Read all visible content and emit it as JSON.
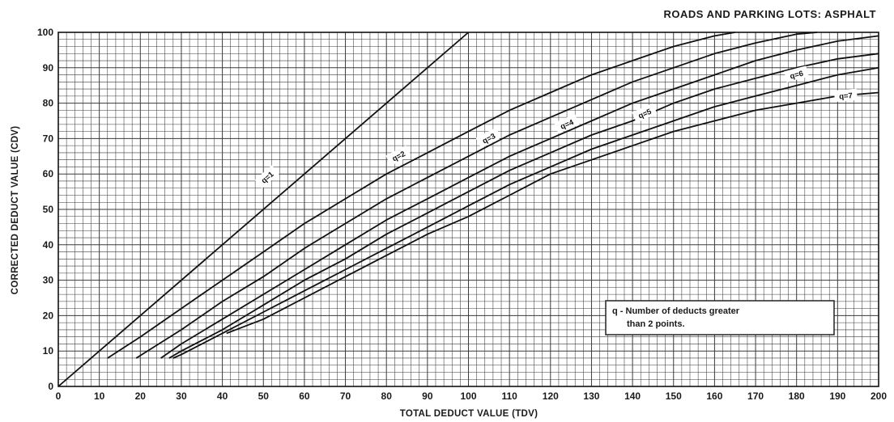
{
  "chart_data": {
    "type": "line",
    "title": "ROADS AND PARKING LOTS:  ASPHALT",
    "xlabel": "TOTAL DEDUCT VALUE (TDV)",
    "ylabel": "CORRECTED DEDUCT VALUE (CDV)",
    "xlim": [
      0,
      200
    ],
    "ylim": [
      0,
      100
    ],
    "xticks": [
      "0",
      "10",
      "20",
      "30",
      "40",
      "50",
      "60",
      "70",
      "80",
      "90",
      "100",
      "110",
      "120",
      "130",
      "140",
      "150",
      "160",
      "170",
      "180",
      "190",
      "200"
    ],
    "yticks": [
      "0",
      "10",
      "20",
      "30",
      "40",
      "50",
      "60",
      "70",
      "80",
      "90",
      "100"
    ],
    "grid": true,
    "legend_note": [
      "q - Number of deducts greater",
      "than 2 points."
    ],
    "series": [
      {
        "name": "q=1",
        "x": [
          0,
          100
        ],
        "y": [
          0,
          100
        ]
      },
      {
        "name": "q=2",
        "x": [
          12,
          20,
          30,
          40,
          50,
          60,
          70,
          80,
          90,
          100,
          110,
          120,
          130,
          140,
          150,
          160,
          165
        ],
        "y": [
          8,
          14,
          22,
          30,
          38,
          46,
          53,
          60,
          66,
          72,
          78,
          83,
          88,
          92,
          96,
          99,
          100
        ]
      },
      {
        "name": "q=3",
        "x": [
          19,
          30,
          40,
          50,
          60,
          70,
          80,
          90,
          100,
          110,
          120,
          130,
          140,
          150,
          160,
          170,
          180,
          185
        ],
        "y": [
          8,
          16,
          24,
          31,
          39,
          46,
          53,
          59,
          65,
          71,
          76,
          81,
          86,
          90,
          94,
          97,
          99.5,
          100
        ]
      },
      {
        "name": "q=4",
        "x": [
          25,
          30,
          40,
          50,
          60,
          70,
          80,
          90,
          100,
          110,
          120,
          130,
          140,
          150,
          160,
          170,
          180,
          190,
          200
        ],
        "y": [
          8,
          12,
          19,
          26,
          33,
          40,
          47,
          53,
          59,
          65,
          70,
          75,
          80,
          84,
          88,
          92,
          95,
          97.5,
          99
        ]
      },
      {
        "name": "q=5",
        "x": [
          27,
          30,
          40,
          50,
          60,
          70,
          80,
          90,
          100,
          110,
          120,
          130,
          140,
          150,
          160,
          170,
          180,
          190,
          200
        ],
        "y": [
          8,
          10,
          16,
          23,
          30,
          36,
          43,
          49,
          55,
          61,
          66,
          71,
          75,
          80,
          84,
          87,
          90,
          92.5,
          94
        ]
      },
      {
        "name": "q=6",
        "x": [
          28,
          30,
          40,
          50,
          60,
          70,
          80,
          90,
          100,
          110,
          120,
          130,
          140,
          150,
          160,
          170,
          180,
          190,
          200
        ],
        "y": [
          8,
          9,
          15,
          21,
          27,
          33,
          39,
          45,
          51,
          57,
          62,
          67,
          71,
          75,
          79,
          82,
          85,
          88,
          90
        ]
      },
      {
        "name": "q=7",
        "x": [
          41,
          50,
          60,
          70,
          80,
          90,
          100,
          110,
          120,
          130,
          140,
          150,
          160,
          170,
          180,
          190,
          200
        ],
        "y": [
          15,
          19,
          25,
          31,
          37,
          43,
          48,
          54,
          60,
          64,
          68,
          72,
          75,
          78,
          80,
          82,
          83
        ]
      }
    ],
    "curve_labels": [
      {
        "text": "q=1",
        "x": 51,
        "y": 59
      },
      {
        "text": "q=2",
        "x": 83,
        "y": 65
      },
      {
        "text": "q=3",
        "x": 105,
        "y": 70
      },
      {
        "text": "q=4",
        "x": 124,
        "y": 74
      },
      {
        "text": "q=5",
        "x": 143,
        "y": 77
      },
      {
        "text": "q=6",
        "x": 180,
        "y": 88
      },
      {
        "text": "q=7",
        "x": 192,
        "y": 82
      }
    ]
  },
  "colors": {
    "line": "#111111",
    "grid": "#3a3a3a",
    "background": "#ffffff"
  }
}
